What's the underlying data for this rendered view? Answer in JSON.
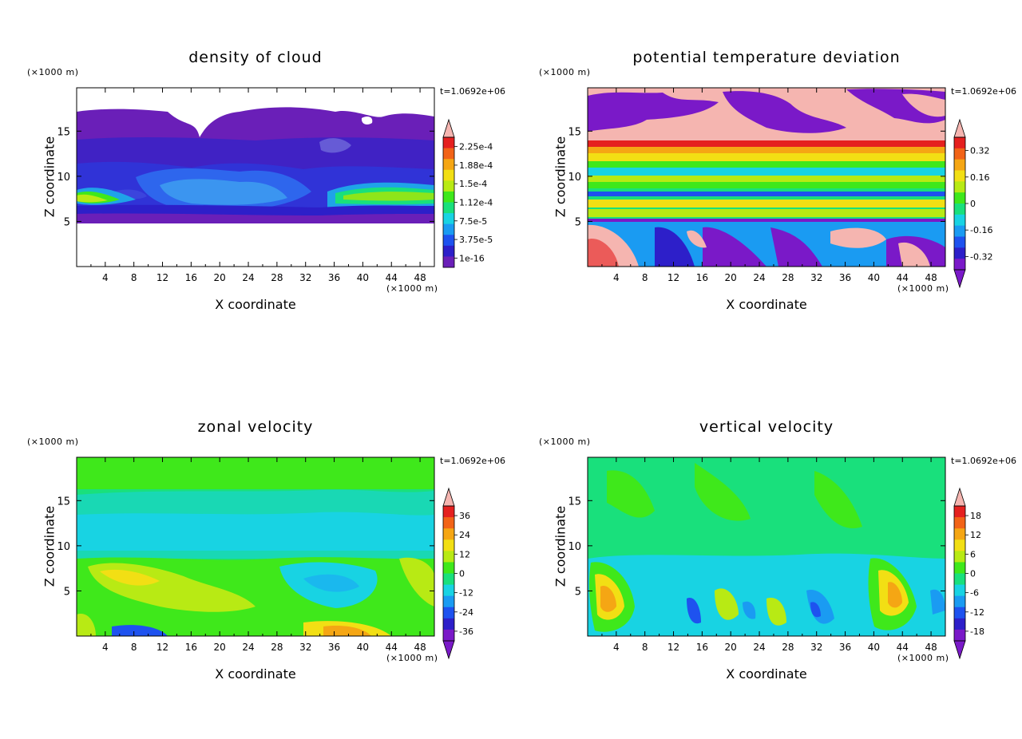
{
  "figure": {
    "time_label": "t=1.0692e+06",
    "z_unit": "(×1000 m)",
    "x_unit": "(×1000 m)",
    "xlabel": "X coordinate",
    "ylabel": "Z coordinate"
  },
  "chart_data": [
    {
      "type": "heatmap",
      "title": "density of cloud",
      "xlabel": "X coordinate",
      "ylabel": "Z coordinate",
      "x_ticks": [
        "4",
        "8",
        "12",
        "16",
        "20",
        "24",
        "28",
        "32",
        "36",
        "40",
        "44",
        "48"
      ],
      "y_ticks": [
        "5",
        "10",
        "15"
      ],
      "xlim": [
        0,
        50
      ],
      "ylim": [
        0,
        19.8
      ],
      "colorbar_labels": [
        "2.25e-4",
        "1.88e-4",
        "1.5e-4",
        "1.12e-4",
        "7.5e-5",
        "3.75e-5",
        "1e-16"
      ],
      "colorbar_arrows": {
        "top": true,
        "bottom": false
      },
      "colorbar_colors": [
        "#6a1fb8",
        "#2d1fc9",
        "#1e52ef",
        "#1a9bf2",
        "#18d3e3",
        "#19e07c",
        "#3fe81b",
        "#b8ea14",
        "#f2df14",
        "#f5a614",
        "#f26317",
        "#e5201f"
      ]
    },
    {
      "type": "heatmap",
      "title": "potential temperature deviation",
      "xlabel": "X coordinate",
      "ylabel": "Z coordinate",
      "x_ticks": [
        "4",
        "8",
        "12",
        "16",
        "20",
        "24",
        "28",
        "32",
        "36",
        "40",
        "44",
        "48"
      ],
      "y_ticks": [
        "5",
        "10",
        "15"
      ],
      "xlim": [
        0,
        50
      ],
      "ylim": [
        0,
        19.8
      ],
      "colorbar_labels": [
        "0.32",
        "0.16",
        "0",
        "-0.16",
        "-0.32"
      ],
      "colorbar_arrows": {
        "top": true,
        "bottom": true
      },
      "colorbar_colors": [
        "#7a19c8",
        "#2d1fc9",
        "#1e52ef",
        "#1a9bf2",
        "#18d3e3",
        "#19e07c",
        "#3fe81b",
        "#b8ea14",
        "#f2df14",
        "#f5a614",
        "#f26317",
        "#e5201f"
      ]
    },
    {
      "type": "heatmap",
      "title": "zonal velocity",
      "xlabel": "X coordinate",
      "ylabel": "Z coordinate",
      "x_ticks": [
        "4",
        "8",
        "12",
        "16",
        "20",
        "24",
        "28",
        "32",
        "36",
        "40",
        "44",
        "48"
      ],
      "y_ticks": [
        "5",
        "10",
        "15"
      ],
      "xlim": [
        0,
        50
      ],
      "ylim": [
        0,
        19.8
      ],
      "colorbar_labels": [
        "36",
        "24",
        "12",
        "0",
        "-12",
        "-24",
        "-36"
      ],
      "colorbar_arrows": {
        "top": true,
        "bottom": true
      },
      "colorbar_colors": [
        "#7a19c8",
        "#2d1fc9",
        "#1e52ef",
        "#1a9bf2",
        "#18d3e3",
        "#19e07c",
        "#3fe81b",
        "#b8ea14",
        "#f2df14",
        "#f5a614",
        "#f26317",
        "#e5201f"
      ]
    },
    {
      "type": "heatmap",
      "title": "vertical velocity",
      "xlabel": "X coordinate",
      "ylabel": "Z coordinate",
      "x_ticks": [
        "4",
        "8",
        "12",
        "16",
        "20",
        "24",
        "28",
        "32",
        "36",
        "40",
        "44",
        "48"
      ],
      "y_ticks": [
        "5",
        "10",
        "15"
      ],
      "xlim": [
        0,
        50
      ],
      "ylim": [
        0,
        19.8
      ],
      "colorbar_labels": [
        "18",
        "12",
        "6",
        "0",
        "-6",
        "-12",
        "-18"
      ],
      "colorbar_arrows": {
        "top": true,
        "bottom": true
      },
      "colorbar_colors": [
        "#7a19c8",
        "#2d1fc9",
        "#1e52ef",
        "#1a9bf2",
        "#18d3e3",
        "#19e07c",
        "#3fe81b",
        "#b8ea14",
        "#f2df14",
        "#f5a614",
        "#f26317",
        "#e5201f"
      ]
    }
  ]
}
